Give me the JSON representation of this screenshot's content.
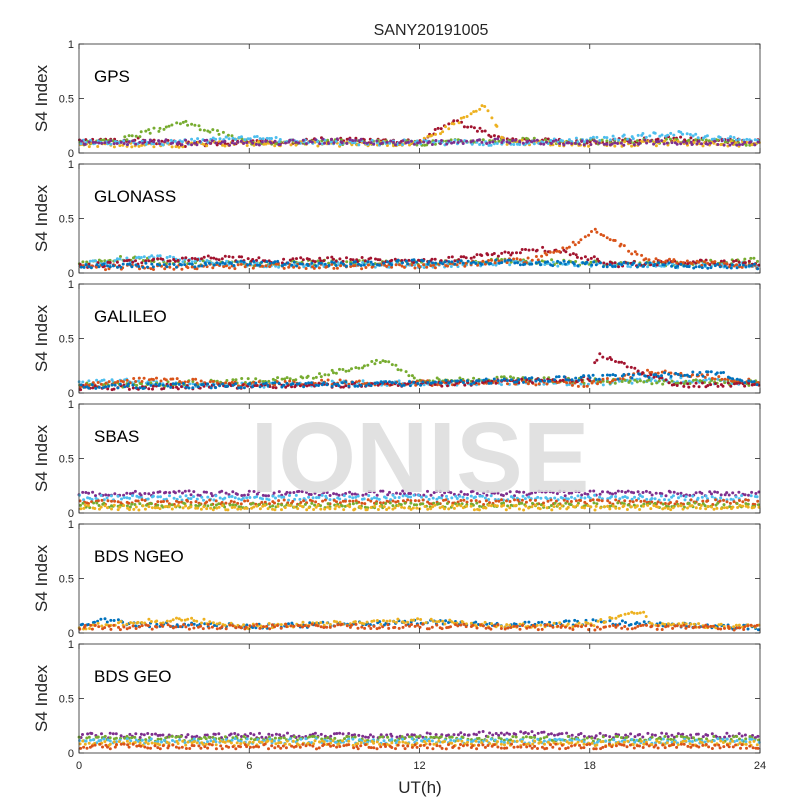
{
  "chart_data": {
    "type": "scatter",
    "title": "SANY20191005",
    "xlabel": "UT(h)",
    "ylabel": "S4 Index",
    "xlim": [
      0,
      24
    ],
    "ylim": [
      0,
      1
    ],
    "xticks": [
      "0",
      "6",
      "12",
      "18",
      "24"
    ],
    "yticks": [
      "0",
      "0.5",
      "1"
    ],
    "watermark": "IONISE",
    "colors": [
      "#0072BD",
      "#D95319",
      "#EDB120",
      "#7E2F8E",
      "#77AC30",
      "#4DBEEE",
      "#A2142F"
    ],
    "panels": [
      {
        "label": "GPS",
        "series": [
          {
            "color": "#A2142F",
            "x": [
              0,
              2,
              3.8,
              6,
              9,
              12,
              13.2,
              15,
              18,
              21,
              24
            ],
            "y": [
              0.1,
              0.12,
              0.08,
              0.1,
              0.12,
              0.11,
              0.3,
              0.12,
              0.1,
              0.13,
              0.1
            ]
          },
          {
            "color": "#77AC30",
            "x": [
              0,
              1.5,
              3.6,
              6,
              9,
              12,
              15,
              18,
              21,
              24
            ],
            "y": [
              0.09,
              0.12,
              0.28,
              0.1,
              0.1,
              0.09,
              0.12,
              0.1,
              0.11,
              0.09
            ]
          },
          {
            "color": "#EDB120",
            "x": [
              0,
              3,
              6,
              9,
              12,
              14.3,
              15,
              18,
              21,
              24
            ],
            "y": [
              0.08,
              0.07,
              0.09,
              0.08,
              0.09,
              0.43,
              0.1,
              0.08,
              0.09,
              0.08
            ]
          },
          {
            "color": "#4DBEEE",
            "x": [
              0,
              3,
              6,
              9,
              12,
              15,
              18,
              21,
              24
            ],
            "y": [
              0.1,
              0.09,
              0.14,
              0.09,
              0.1,
              0.09,
              0.12,
              0.18,
              0.1
            ]
          },
          {
            "color": "#7E2F8E",
            "x": [
              0,
              3,
              6,
              9,
              12,
              15,
              18,
              21,
              24
            ],
            "y": [
              0.09,
              0.1,
              0.09,
              0.11,
              0.09,
              0.11,
              0.09,
              0.1,
              0.09
            ]
          }
        ]
      },
      {
        "label": "GLONASS",
        "series": [
          {
            "color": "#77AC30",
            "x": [
              0,
              1.5,
              3,
              6,
              9,
              12,
              15,
              18,
              21,
              24
            ],
            "y": [
              0.09,
              0.14,
              0.1,
              0.08,
              0.1,
              0.09,
              0.11,
              0.09,
              0.08,
              0.12
            ]
          },
          {
            "color": "#4DBEEE",
            "x": [
              0,
              2.8,
              6,
              9,
              12,
              15,
              18,
              21,
              24
            ],
            "y": [
              0.08,
              0.14,
              0.07,
              0.08,
              0.07,
              0.09,
              0.08,
              0.07,
              0.08
            ]
          },
          {
            "color": "#A2142F",
            "x": [
              0,
              4.5,
              7,
              9,
              12,
              14,
              16.5,
              19,
              21,
              24
            ],
            "y": [
              0.06,
              0.15,
              0.11,
              0.13,
              0.1,
              0.15,
              0.22,
              0.08,
              0.1,
              0.09
            ]
          },
          {
            "color": "#D95319",
            "x": [
              0,
              6,
              12,
              16,
              17.5,
              18.2,
              20,
              24
            ],
            "y": [
              0.05,
              0.06,
              0.06,
              0.12,
              0.28,
              0.38,
              0.12,
              0.06
            ]
          },
          {
            "color": "#0072BD",
            "x": [
              0,
              3,
              6,
              9,
              12,
              15,
              18,
              21,
              24
            ],
            "y": [
              0.06,
              0.07,
              0.09,
              0.08,
              0.1,
              0.1,
              0.08,
              0.07,
              0.06
            ]
          }
        ]
      },
      {
        "label": "GALILEO",
        "series": [
          {
            "color": "#4DBEEE",
            "x": [
              0,
              1.5,
              3,
              6,
              9,
              12,
              15,
              18,
              21,
              24
            ],
            "y": [
              0.09,
              0.12,
              0.08,
              0.07,
              0.09,
              0.09,
              0.1,
              0.09,
              0.12,
              0.09
            ]
          },
          {
            "color": "#77AC30",
            "x": [
              0,
              3,
              5.5,
              8,
              10.8,
              12,
              15,
              18,
              21,
              24
            ],
            "y": [
              0.07,
              0.08,
              0.11,
              0.13,
              0.3,
              0.12,
              0.13,
              0.11,
              0.1,
              0.09
            ]
          },
          {
            "color": "#D95319",
            "x": [
              0,
              2.5,
              6,
              9,
              12,
              15,
              18,
              20.2,
              24
            ],
            "y": [
              0.06,
              0.13,
              0.08,
              0.1,
              0.09,
              0.1,
              0.08,
              0.2,
              0.1
            ]
          },
          {
            "color": "#A2142F",
            "x": [
              0,
              4,
              8,
              12,
              15,
              18,
              18.3,
              21,
              24
            ],
            "y": [
              0.05,
              0.06,
              0.07,
              0.08,
              0.1,
              0.13,
              0.35,
              0.07,
              0.08
            ]
          },
          {
            "color": "#0072BD",
            "x": [
              0,
              6,
              12,
              16,
              19,
              22.5,
              24
            ],
            "y": [
              0.06,
              0.07,
              0.09,
              0.12,
              0.15,
              0.18,
              0.08
            ]
          }
        ]
      },
      {
        "label": "SBAS",
        "series": [
          {
            "color": "#7E2F8E",
            "x": [
              0,
              6,
              12,
              18,
              24
            ],
            "y": [
              0.18,
              0.18,
              0.18,
              0.18,
              0.18
            ]
          },
          {
            "color": "#4DBEEE",
            "x": [
              0,
              6,
              12,
              18,
              24
            ],
            "y": [
              0.14,
              0.14,
              0.14,
              0.14,
              0.14
            ]
          },
          {
            "color": "#D95319",
            "x": [
              0,
              6,
              12,
              18,
              24
            ],
            "y": [
              0.1,
              0.1,
              0.1,
              0.1,
              0.1
            ]
          },
          {
            "color": "#77AC30",
            "x": [
              0,
              6,
              12,
              18,
              24
            ],
            "y": [
              0.07,
              0.07,
              0.07,
              0.07,
              0.07
            ]
          },
          {
            "color": "#EDB120",
            "x": [
              0,
              6,
              12,
              18,
              24
            ],
            "y": [
              0.05,
              0.05,
              0.05,
              0.05,
              0.05
            ]
          }
        ]
      },
      {
        "label": "BDS NGEO",
        "series": [
          {
            "color": "#0072BD",
            "x": [
              0,
              0.8,
              2,
              4,
              6,
              9,
              12,
              15,
              18,
              24
            ],
            "y": [
              0.06,
              0.13,
              0.07,
              0.08,
              0.06,
              0.08,
              0.1,
              0.07,
              0.1,
              0.05
            ]
          },
          {
            "color": "#EDB120",
            "x": [
              0,
              2,
              4,
              6,
              9,
              12,
              15,
              18,
              19.8,
              20.2,
              24
            ],
            "y": [
              0.05,
              0.1,
              0.12,
              0.06,
              0.09,
              0.11,
              0.07,
              0.08,
              0.2,
              0.08,
              0.05
            ]
          },
          {
            "color": "#D95319",
            "x": [
              0,
              6,
              12,
              18,
              24
            ],
            "y": [
              0.05,
              0.06,
              0.06,
              0.05,
              0.05
            ]
          }
        ]
      },
      {
        "label": "BDS GEO",
        "series": [
          {
            "color": "#7E2F8E",
            "x": [
              0,
              6,
              12,
              15,
              18,
              24
            ],
            "y": [
              0.16,
              0.16,
              0.16,
              0.18,
              0.16,
              0.16
            ]
          },
          {
            "color": "#77AC30",
            "x": [
              0,
              6,
              12,
              18,
              24
            ],
            "y": [
              0.13,
              0.13,
              0.13,
              0.13,
              0.13
            ]
          },
          {
            "color": "#4DBEEE",
            "x": [
              0,
              6,
              12,
              18,
              24
            ],
            "y": [
              0.11,
              0.11,
              0.11,
              0.11,
              0.11
            ]
          },
          {
            "color": "#EDB120",
            "x": [
              0,
              6,
              12,
              18,
              24
            ],
            "y": [
              0.09,
              0.09,
              0.09,
              0.09,
              0.09
            ]
          },
          {
            "color": "#D95319",
            "x": [
              0,
              6,
              12,
              18,
              24
            ],
            "y": [
              0.06,
              0.06,
              0.06,
              0.06,
              0.06
            ]
          }
        ]
      }
    ]
  }
}
